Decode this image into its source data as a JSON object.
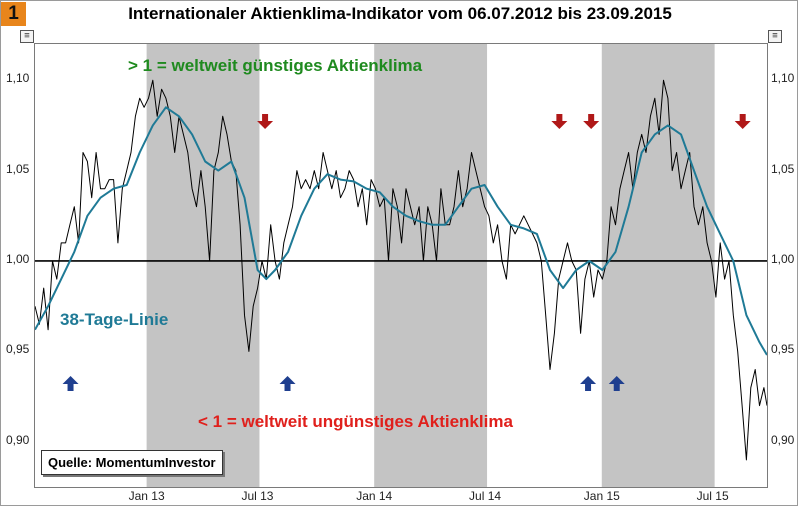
{
  "badge": "1",
  "title": "Internationaler Aktienklima-Indikator vom 06.07.2012 bis 23.09.2015",
  "annotations": {
    "bullish": "> 1 = weltweit günstiges Aktienklima",
    "bearish": "< 1 = weltweit ungünstiges Aktienklima",
    "ma_label": "38-Tage-Linie",
    "source": "Quelle: MomentumInvestor"
  },
  "colors": {
    "indicator": "#000000",
    "moving_average": "#1f7a96",
    "shade": "#c4c4c4",
    "bullish_text": "#1f8a1f",
    "bearish_text": "#e0201c",
    "ma_text": "#1f7a96",
    "down_arrow": "#b01818",
    "up_arrow": "#1f3f8f"
  },
  "icons": {
    "up": "up-arrow-icon",
    "down": "down-arrow-icon"
  },
  "chart_data": {
    "type": "line",
    "title": "Internationaler Aktienklima-Indikator vom 06.07.2012 bis 23.09.2015",
    "x_range": [
      "2012-07-06",
      "2015-09-23"
    ],
    "ylim": [
      0.875,
      1.12
    ],
    "y_ticks": [
      "0,90",
      "0,95",
      "1,00",
      "1,05",
      "1,10"
    ],
    "y_tick_values": [
      0.9,
      0.95,
      1.0,
      1.05,
      1.1
    ],
    "x_ticks": [
      {
        "label": "Jan 13",
        "date": "2013-01-01"
      },
      {
        "label": "Jul 13",
        "date": "2013-07-01"
      },
      {
        "label": "Jan 14",
        "date": "2014-01-01"
      },
      {
        "label": "Jul 14",
        "date": "2014-07-01"
      },
      {
        "label": "Jan 15",
        "date": "2015-01-01"
      },
      {
        "label": "Jul 15",
        "date": "2015-07-01"
      }
    ],
    "reference_line": 1.0,
    "shaded_periods": [
      [
        "2013-01-01",
        "2013-07-01"
      ],
      [
        "2014-01-01",
        "2014-07-01"
      ],
      [
        "2015-01-01",
        "2015-07-01"
      ]
    ],
    "series": [
      {
        "name": "",
        "role": "indicator",
        "points": [
          [
            "2012-07-06",
            0.975
          ],
          [
            "2012-07-13",
            0.965
          ],
          [
            "2012-07-20",
            0.985
          ],
          [
            "2012-07-27",
            0.962
          ],
          [
            "2012-08-03",
            1.0
          ],
          [
            "2012-08-10",
            0.99
          ],
          [
            "2012-08-17",
            1.01
          ],
          [
            "2012-08-24",
            1.01
          ],
          [
            "2012-08-31",
            1.02
          ],
          [
            "2012-09-07",
            1.03
          ],
          [
            "2012-09-14",
            1.01
          ],
          [
            "2012-09-21",
            1.06
          ],
          [
            "2012-09-28",
            1.055
          ],
          [
            "2012-10-05",
            1.035
          ],
          [
            "2012-10-12",
            1.06
          ],
          [
            "2012-10-19",
            1.04
          ],
          [
            "2012-10-26",
            1.04
          ],
          [
            "2012-11-02",
            1.045
          ],
          [
            "2012-11-09",
            1.045
          ],
          [
            "2012-11-16",
            1.01
          ],
          [
            "2012-11-23",
            1.04
          ],
          [
            "2012-11-30",
            1.05
          ],
          [
            "2012-12-07",
            1.06
          ],
          [
            "2012-12-14",
            1.08
          ],
          [
            "2012-12-21",
            1.09
          ],
          [
            "2012-12-28",
            1.085
          ],
          [
            "2013-01-04",
            1.09
          ],
          [
            "2013-01-11",
            1.1
          ],
          [
            "2013-01-18",
            1.08
          ],
          [
            "2013-01-25",
            1.095
          ],
          [
            "2013-02-01",
            1.09
          ],
          [
            "2013-02-08",
            1.08
          ],
          [
            "2013-02-15",
            1.06
          ],
          [
            "2013-02-22",
            1.08
          ],
          [
            "2013-03-01",
            1.07
          ],
          [
            "2013-03-08",
            1.06
          ],
          [
            "2013-03-15",
            1.04
          ],
          [
            "2013-03-22",
            1.03
          ],
          [
            "2013-03-29",
            1.05
          ],
          [
            "2013-04-05",
            1.03
          ],
          [
            "2013-04-12",
            1.0
          ],
          [
            "2013-04-19",
            1.05
          ],
          [
            "2013-04-26",
            1.06
          ],
          [
            "2013-05-03",
            1.08
          ],
          [
            "2013-05-10",
            1.07
          ],
          [
            "2013-05-17",
            1.055
          ],
          [
            "2013-05-24",
            1.05
          ],
          [
            "2013-05-31",
            1.02
          ],
          [
            "2013-06-07",
            0.97
          ],
          [
            "2013-06-14",
            0.95
          ],
          [
            "2013-06-21",
            0.975
          ],
          [
            "2013-06-28",
            0.985
          ],
          [
            "2013-07-05",
            1.0
          ],
          [
            "2013-07-12",
            0.99
          ],
          [
            "2013-07-19",
            1.02
          ],
          [
            "2013-07-26",
            1.0
          ],
          [
            "2013-08-02",
            0.99
          ],
          [
            "2013-08-09",
            1.01
          ],
          [
            "2013-08-16",
            1.02
          ],
          [
            "2013-08-23",
            1.03
          ],
          [
            "2013-08-30",
            1.05
          ],
          [
            "2013-09-06",
            1.04
          ],
          [
            "2013-09-13",
            1.045
          ],
          [
            "2013-09-20",
            1.04
          ],
          [
            "2013-09-27",
            1.05
          ],
          [
            "2013-10-04",
            1.04
          ],
          [
            "2013-10-11",
            1.06
          ],
          [
            "2013-10-18",
            1.05
          ],
          [
            "2013-10-25",
            1.04
          ],
          [
            "2013-11-01",
            1.05
          ],
          [
            "2013-11-08",
            1.035
          ],
          [
            "2013-11-15",
            1.04
          ],
          [
            "2013-11-22",
            1.05
          ],
          [
            "2013-11-29",
            1.045
          ],
          [
            "2013-12-06",
            1.03
          ],
          [
            "2013-12-13",
            1.04
          ],
          [
            "2013-12-20",
            1.02
          ],
          [
            "2013-12-27",
            1.045
          ],
          [
            "2014-01-03",
            1.04
          ],
          [
            "2014-01-10",
            1.03
          ],
          [
            "2014-01-17",
            1.035
          ],
          [
            "2014-01-24",
            1.0
          ],
          [
            "2014-01-31",
            1.04
          ],
          [
            "2014-02-07",
            1.03
          ],
          [
            "2014-02-14",
            1.01
          ],
          [
            "2014-02-21",
            1.04
          ],
          [
            "2014-02-28",
            1.03
          ],
          [
            "2014-03-07",
            1.02
          ],
          [
            "2014-03-14",
            1.03
          ],
          [
            "2014-03-21",
            1.0
          ],
          [
            "2014-03-28",
            1.03
          ],
          [
            "2014-04-04",
            1.02
          ],
          [
            "2014-04-11",
            1.0
          ],
          [
            "2014-04-18",
            1.04
          ],
          [
            "2014-04-25",
            1.02
          ],
          [
            "2014-05-02",
            1.02
          ],
          [
            "2014-05-09",
            1.03
          ],
          [
            "2014-05-16",
            1.05
          ],
          [
            "2014-05-23",
            1.03
          ],
          [
            "2014-05-30",
            1.04
          ],
          [
            "2014-06-06",
            1.06
          ],
          [
            "2014-06-13",
            1.05
          ],
          [
            "2014-06-20",
            1.04
          ],
          [
            "2014-06-27",
            1.03
          ],
          [
            "2014-07-04",
            1.025
          ],
          [
            "2014-07-11",
            1.01
          ],
          [
            "2014-07-18",
            1.02
          ],
          [
            "2014-07-25",
            1.0
          ],
          [
            "2014-08-01",
            0.99
          ],
          [
            "2014-08-08",
            1.02
          ],
          [
            "2014-08-15",
            1.015
          ],
          [
            "2014-08-22",
            1.02
          ],
          [
            "2014-08-29",
            1.025
          ],
          [
            "2014-09-05",
            1.02
          ],
          [
            "2014-09-12",
            1.015
          ],
          [
            "2014-09-19",
            1.01
          ],
          [
            "2014-09-26",
            1.0
          ],
          [
            "2014-10-03",
            0.97
          ],
          [
            "2014-10-10",
            0.94
          ],
          [
            "2014-10-17",
            0.96
          ],
          [
            "2014-10-24",
            0.99
          ],
          [
            "2014-10-31",
            1.0
          ],
          [
            "2014-11-07",
            1.01
          ],
          [
            "2014-11-14",
            1.0
          ],
          [
            "2014-11-21",
            0.995
          ],
          [
            "2014-11-28",
            0.96
          ],
          [
            "2014-12-05",
            0.99
          ],
          [
            "2014-12-12",
            1.0
          ],
          [
            "2014-12-19",
            0.98
          ],
          [
            "2014-12-26",
            0.995
          ],
          [
            "2015-01-02",
            0.99
          ],
          [
            "2015-01-09",
            1.0
          ],
          [
            "2015-01-16",
            1.03
          ],
          [
            "2015-01-23",
            1.02
          ],
          [
            "2015-01-30",
            1.04
          ],
          [
            "2015-02-06",
            1.05
          ],
          [
            "2015-02-13",
            1.06
          ],
          [
            "2015-02-20",
            1.04
          ],
          [
            "2015-02-27",
            1.06
          ],
          [
            "2015-03-06",
            1.07
          ],
          [
            "2015-03-13",
            1.06
          ],
          [
            "2015-03-20",
            1.08
          ],
          [
            "2015-03-27",
            1.09
          ],
          [
            "2015-04-03",
            1.07
          ],
          [
            "2015-04-10",
            1.1
          ],
          [
            "2015-04-17",
            1.09
          ],
          [
            "2015-04-24",
            1.05
          ],
          [
            "2015-05-01",
            1.06
          ],
          [
            "2015-05-08",
            1.04
          ],
          [
            "2015-05-15",
            1.05
          ],
          [
            "2015-05-22",
            1.06
          ],
          [
            "2015-05-29",
            1.03
          ],
          [
            "2015-06-05",
            1.02
          ],
          [
            "2015-06-12",
            1.03
          ],
          [
            "2015-06-19",
            1.01
          ],
          [
            "2015-06-26",
            1.0
          ],
          [
            "2015-07-03",
            0.98
          ],
          [
            "2015-07-10",
            1.01
          ],
          [
            "2015-07-17",
            0.99
          ],
          [
            "2015-07-24",
            1.0
          ],
          [
            "2015-07-31",
            0.97
          ],
          [
            "2015-08-07",
            0.95
          ],
          [
            "2015-08-14",
            0.92
          ],
          [
            "2015-08-21",
            0.89
          ],
          [
            "2015-08-28",
            0.93
          ],
          [
            "2015-09-04",
            0.94
          ],
          [
            "2015-09-11",
            0.92
          ],
          [
            "2015-09-18",
            0.93
          ],
          [
            "2015-09-23",
            0.92
          ]
        ]
      },
      {
        "name": "38-Tage-Linie",
        "role": "moving_average",
        "points": [
          [
            "2012-07-06",
            0.962
          ],
          [
            "2012-07-27",
            0.975
          ],
          [
            "2012-08-17",
            0.99
          ],
          [
            "2012-09-07",
            1.005
          ],
          [
            "2012-09-28",
            1.025
          ],
          [
            "2012-10-19",
            1.035
          ],
          [
            "2012-11-09",
            1.04
          ],
          [
            "2012-11-30",
            1.042
          ],
          [
            "2012-12-21",
            1.06
          ],
          [
            "2013-01-11",
            1.075
          ],
          [
            "2013-02-01",
            1.085
          ],
          [
            "2013-02-22",
            1.08
          ],
          [
            "2013-03-15",
            1.07
          ],
          [
            "2013-04-05",
            1.055
          ],
          [
            "2013-04-26",
            1.05
          ],
          [
            "2013-05-17",
            1.055
          ],
          [
            "2013-06-07",
            1.035
          ],
          [
            "2013-06-28",
            0.995
          ],
          [
            "2013-07-12",
            0.99
          ],
          [
            "2013-07-26",
            0.995
          ],
          [
            "2013-08-16",
            1.005
          ],
          [
            "2013-09-06",
            1.025
          ],
          [
            "2013-09-27",
            1.04
          ],
          [
            "2013-10-18",
            1.048
          ],
          [
            "2013-11-08",
            1.045
          ],
          [
            "2013-11-29",
            1.044
          ],
          [
            "2013-12-20",
            1.04
          ],
          [
            "2014-01-10",
            1.038
          ],
          [
            "2014-01-31",
            1.03
          ],
          [
            "2014-02-21",
            1.025
          ],
          [
            "2014-03-14",
            1.022
          ],
          [
            "2014-04-04",
            1.02
          ],
          [
            "2014-04-25",
            1.02
          ],
          [
            "2014-05-16",
            1.03
          ],
          [
            "2014-06-06",
            1.04
          ],
          [
            "2014-06-27",
            1.042
          ],
          [
            "2014-07-18",
            1.03
          ],
          [
            "2014-08-08",
            1.02
          ],
          [
            "2014-08-29",
            1.018
          ],
          [
            "2014-09-19",
            1.015
          ],
          [
            "2014-10-10",
            0.995
          ],
          [
            "2014-10-31",
            0.985
          ],
          [
            "2014-11-21",
            0.995
          ],
          [
            "2014-12-12",
            1.0
          ],
          [
            "2015-01-02",
            0.995
          ],
          [
            "2015-01-23",
            1.005
          ],
          [
            "2015-02-13",
            1.03
          ],
          [
            "2015-03-06",
            1.06
          ],
          [
            "2015-03-27",
            1.07
          ],
          [
            "2015-04-17",
            1.075
          ],
          [
            "2015-05-08",
            1.07
          ],
          [
            "2015-05-29",
            1.05
          ],
          [
            "2015-06-19",
            1.03
          ],
          [
            "2015-07-10",
            1.015
          ],
          [
            "2015-07-31",
            1.0
          ],
          [
            "2015-08-21",
            0.97
          ],
          [
            "2015-09-11",
            0.955
          ],
          [
            "2015-09-23",
            0.948
          ]
        ]
      }
    ],
    "markers": [
      {
        "type": "up",
        "date": "2012-09-01"
      },
      {
        "type": "up",
        "date": "2013-08-15"
      },
      {
        "type": "up",
        "date": "2014-12-10"
      },
      {
        "type": "up",
        "date": "2015-01-25"
      },
      {
        "type": "down",
        "date": "2013-07-10"
      },
      {
        "type": "down",
        "date": "2014-10-25"
      },
      {
        "type": "down",
        "date": "2014-12-15"
      },
      {
        "type": "down",
        "date": "2015-08-15"
      }
    ]
  }
}
